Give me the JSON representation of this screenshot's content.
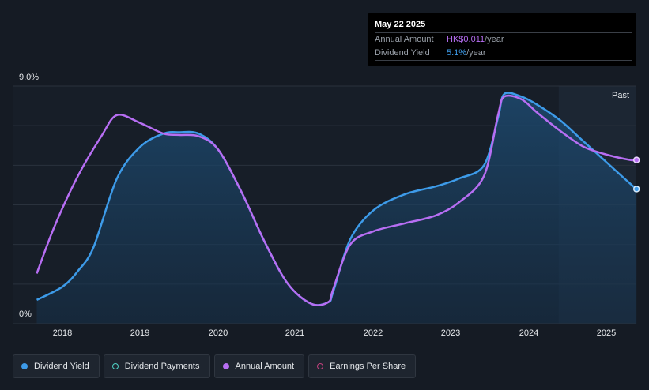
{
  "tooltip": {
    "date": "May 22 2025",
    "annual_amount_label": "Annual Amount",
    "annual_amount_value": "HK$0.011",
    "annual_amount_unit": "/year",
    "dividend_yield_label": "Dividend Yield",
    "dividend_yield_value": "5.1%",
    "dividend_yield_unit": "/year"
  },
  "past_label": "Past",
  "legend": [
    {
      "label": "Dividend Yield",
      "color": "#3d9be9",
      "style": "filled"
    },
    {
      "label": "Dividend Payments",
      "color": "#4fd1c5",
      "style": "hollow"
    },
    {
      "label": "Annual Amount",
      "color": "#b76ef3",
      "style": "filled"
    },
    {
      "label": "Earnings Per Share",
      "color": "#c2407e",
      "style": "hollow"
    }
  ],
  "chart_data": {
    "type": "area",
    "ylim": [
      0,
      9.0
    ],
    "yticks": [
      "0%",
      "9.0%"
    ],
    "xticks": [
      "2018",
      "2019",
      "2020",
      "2021",
      "2022",
      "2023",
      "2024",
      "2025"
    ],
    "xlim": [
      2017.67,
      2025.4
    ],
    "forecast_start": 2024.38,
    "series": [
      {
        "name": "Dividend Yield",
        "color": "#3d9be9",
        "fill": true,
        "x": [
          2017.67,
          2018.0,
          2018.2,
          2018.4,
          2018.7,
          2019.0,
          2019.3,
          2019.5,
          2019.75,
          2020.0,
          2020.3,
          2020.6,
          2020.9,
          2021.2,
          2021.42,
          2021.48,
          2021.7,
          2022.0,
          2022.4,
          2022.8,
          2023.1,
          2023.42,
          2023.6,
          2023.68,
          2023.9,
          2024.1,
          2024.4,
          2024.7,
          2025.0,
          2025.3,
          2025.38
        ],
        "y": [
          0.9,
          1.4,
          2.0,
          2.9,
          5.5,
          6.7,
          7.2,
          7.25,
          7.2,
          6.6,
          5.0,
          3.1,
          1.5,
          0.75,
          0.82,
          1.2,
          3.2,
          4.3,
          4.9,
          5.2,
          5.5,
          6.0,
          7.8,
          8.7,
          8.6,
          8.3,
          7.7,
          6.9,
          6.1,
          5.3,
          5.1
        ]
      },
      {
        "name": "Annual Amount",
        "color": "#b76ef3",
        "fill": false,
        "x": [
          2017.67,
          2017.9,
          2018.2,
          2018.5,
          2018.7,
          2019.0,
          2019.3,
          2019.5,
          2019.75,
          2020.0,
          2020.3,
          2020.6,
          2020.9,
          2021.2,
          2021.42,
          2021.48,
          2021.7,
          2022.0,
          2022.4,
          2022.8,
          2023.1,
          2023.42,
          2023.6,
          2023.68,
          2023.9,
          2024.1,
          2024.4,
          2024.7,
          2025.0,
          2025.3,
          2025.38
        ],
        "y": [
          1.9,
          3.7,
          5.6,
          7.1,
          7.9,
          7.6,
          7.2,
          7.15,
          7.1,
          6.6,
          5.0,
          3.1,
          1.5,
          0.75,
          0.82,
          1.3,
          3.0,
          3.5,
          3.8,
          4.1,
          4.6,
          5.6,
          7.9,
          8.6,
          8.5,
          8.0,
          7.3,
          6.7,
          6.4,
          6.2,
          6.2
        ]
      }
    ]
  }
}
